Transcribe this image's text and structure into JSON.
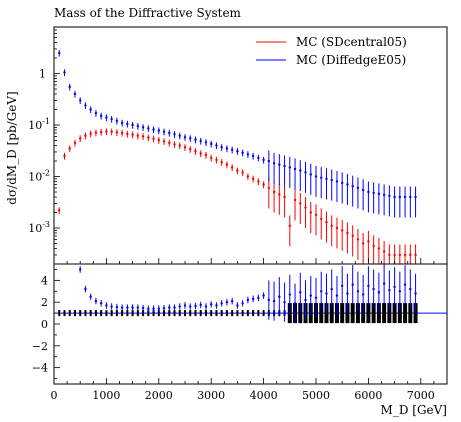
{
  "chart_data": {
    "type": "scatter",
    "title": "Mass of the Diffractive System",
    "xlabel": "M_D [GeV]",
    "ylabel": "dσ/dM_D [pb/GeV]",
    "x_ticks": [
      "0",
      "1000",
      "2000",
      "3000",
      "4000",
      "5000",
      "6000",
      "7000"
    ],
    "y_ticks_main": [
      "1",
      "10^-1",
      "10^-2",
      "10^-3"
    ],
    "y_ticks_ratio": [
      "4",
      "2",
      "0",
      "-2",
      "-4"
    ],
    "xlim": [
      0,
      7500
    ],
    "ylim_main": [
      0.0002,
      8
    ],
    "ylim_ratio": [
      -5.5,
      5.5
    ],
    "yscale_main": "log",
    "legend_position": "top-right",
    "series": [
      {
        "name": "MC (SDcentral05)",
        "color": "#ff0000",
        "x": [
          100,
          200,
          300,
          400,
          500,
          600,
          700,
          800,
          900,
          1000,
          1100,
          1200,
          1300,
          1400,
          1500,
          1600,
          1700,
          1800,
          1900,
          2000,
          2100,
          2200,
          2300,
          2400,
          2500,
          2600,
          2700,
          2800,
          2900,
          3000,
          3100,
          3200,
          3300,
          3400,
          3500,
          3600,
          3700,
          3800,
          3900,
          4000,
          4100,
          4200,
          4300,
          4400,
          4500,
          4600,
          4700,
          4800,
          4900,
          5000,
          5100,
          5200,
          5300,
          5400,
          5500,
          5600,
          5700,
          5800,
          5900,
          6000,
          6100,
          6200,
          6300,
          6400,
          6500,
          6600,
          6700,
          6800,
          6900
        ],
        "y": [
          0.0022,
          0.025,
          0.035,
          0.045,
          0.055,
          0.062,
          0.068,
          0.071,
          0.073,
          0.075,
          0.074,
          0.072,
          0.07,
          0.067,
          0.065,
          0.062,
          0.06,
          0.057,
          0.054,
          0.051,
          0.048,
          0.045,
          0.042,
          0.04,
          0.037,
          0.034,
          0.031,
          0.028,
          0.026,
          0.023,
          0.021,
          0.019,
          0.017,
          0.015,
          0.013,
          0.012,
          0.01,
          0.009,
          0.008,
          0.007,
          0.006,
          0.005,
          0.0045,
          0.004,
          0.0011,
          0.0035,
          0.003,
          0.0025,
          0.002,
          0.0018,
          0.0015,
          0.0013,
          0.0011,
          0.001,
          0.0009,
          0.0008,
          0.0007,
          0.0006,
          0.0005,
          0.00055,
          0.00045,
          0.0004,
          0.00035,
          0.0003,
          0.0003,
          0.0003,
          0.0003,
          0.0003,
          0.0003
        ],
        "ratio": [
          1,
          1,
          1,
          1,
          1,
          1,
          1,
          1,
          1,
          1,
          1,
          1,
          1,
          1,
          1,
          1,
          1,
          1,
          1,
          1,
          1,
          1,
          1,
          1,
          1,
          1,
          1,
          1,
          1,
          1,
          1,
          1,
          1,
          1,
          1,
          1,
          1,
          1,
          1,
          1,
          1,
          1,
          1,
          1,
          1,
          1,
          1,
          1,
          1,
          1,
          1,
          1,
          1,
          1,
          1,
          1,
          1,
          1,
          1,
          1,
          1,
          1,
          1,
          1,
          1,
          1,
          1,
          1,
          1
        ]
      },
      {
        "name": "MC (DiffedgeE05)",
        "color": "#0000ff",
        "x": [
          100,
          200,
          300,
          400,
          500,
          600,
          700,
          800,
          900,
          1000,
          1100,
          1200,
          1300,
          1400,
          1500,
          1600,
          1700,
          1800,
          1900,
          2000,
          2100,
          2200,
          2300,
          2400,
          2500,
          2600,
          2700,
          2800,
          2900,
          3000,
          3100,
          3200,
          3300,
          3400,
          3500,
          3600,
          3700,
          3800,
          3900,
          4000,
          4100,
          4200,
          4300,
          4400,
          4500,
          4600,
          4700,
          4800,
          4900,
          5000,
          5100,
          5200,
          5300,
          5400,
          5500,
          5600,
          5700,
          5800,
          5900,
          6000,
          6100,
          6200,
          6300,
          6400,
          6500,
          6600,
          6700,
          6800,
          6900
        ],
        "y": [
          2.5,
          1.05,
          0.55,
          0.4,
          0.3,
          0.24,
          0.2,
          0.17,
          0.15,
          0.14,
          0.13,
          0.12,
          0.11,
          0.105,
          0.1,
          0.095,
          0.09,
          0.086,
          0.082,
          0.078,
          0.074,
          0.07,
          0.066,
          0.062,
          0.058,
          0.055,
          0.052,
          0.049,
          0.046,
          0.043,
          0.04,
          0.037,
          0.035,
          0.033,
          0.031,
          0.029,
          0.027,
          0.025,
          0.023,
          0.021,
          0.02,
          0.018,
          0.017,
          0.016,
          0.015,
          0.014,
          0.013,
          0.012,
          0.011,
          0.01,
          0.0095,
          0.009,
          0.0085,
          0.008,
          0.0075,
          0.007,
          0.0065,
          0.006,
          0.0055,
          0.005,
          0.0048,
          0.0046,
          0.0044,
          0.0042,
          0.004,
          0.004,
          0.004,
          0.004,
          0.004
        ],
        "ratio": [
          null,
          null,
          null,
          null,
          5.0,
          3.2,
          2.5,
          2.1,
          1.9,
          1.7,
          1.6,
          1.55,
          1.5,
          1.5,
          1.5,
          1.5,
          1.45,
          1.4,
          1.4,
          1.4,
          1.45,
          1.5,
          1.5,
          1.6,
          1.7,
          1.6,
          1.65,
          1.75,
          1.6,
          1.8,
          1.7,
          1.9,
          2.0,
          2.1,
          1.7,
          1.9,
          2.2,
          2.3,
          2.4,
          2.6,
          2.2,
          2.1,
          2.5,
          2.0,
          2.7,
          1.9,
          2.9,
          2.2,
          2.6,
          2.4,
          3.0,
          2.8,
          3.2,
          2.6,
          3.5,
          2.8,
          3.6,
          3.0,
          2.7,
          3.5,
          3.2,
          2.9,
          3.7,
          3.1,
          3.4,
          3.0,
          3.6,
          3.2,
          2.8
        ]
      }
    ]
  }
}
